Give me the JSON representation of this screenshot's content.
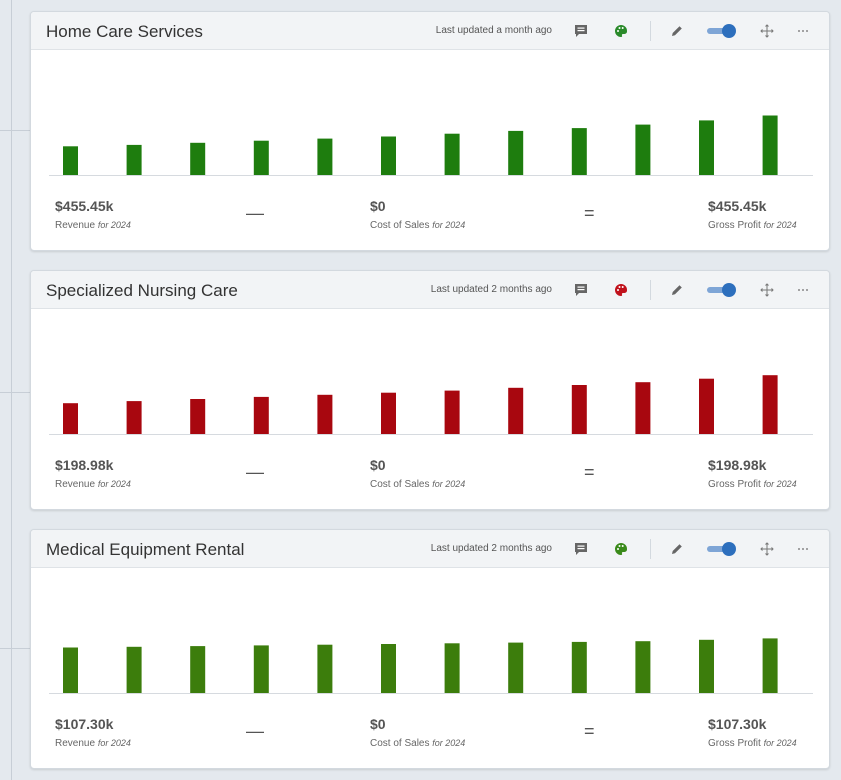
{
  "cards": [
    {
      "title": "Home Care Services",
      "updated": "Last updated a month ago",
      "palette_color": "#2a8a2a",
      "bar_color": "#1e7d0e",
      "bars": [
        0.41,
        0.43,
        0.46,
        0.49,
        0.52,
        0.55,
        0.59,
        0.63,
        0.67,
        0.72,
        0.78,
        0.85
      ],
      "revenue": {
        "value": "$455.45k",
        "label": "Revenue",
        "period": "for 2024"
      },
      "minus": "—",
      "cost": {
        "value": "$0",
        "label": "Cost of Sales",
        "period": "for 2024"
      },
      "equals": "=",
      "profit": {
        "value": "$455.45k",
        "label": "Gross Profit",
        "period": "for 2024"
      }
    },
    {
      "title": "Specialized Nursing Care",
      "updated": "Last updated 2 months ago",
      "palette_color": "#c0111b",
      "bar_color": "#a8070f",
      "bars": [
        0.44,
        0.47,
        0.5,
        0.53,
        0.56,
        0.59,
        0.62,
        0.66,
        0.7,
        0.74,
        0.79,
        0.84
      ],
      "revenue": {
        "value": "$198.98k",
        "label": "Revenue",
        "period": "for 2024"
      },
      "minus": "—",
      "cost": {
        "value": "$0",
        "label": "Cost of Sales",
        "period": "for 2024"
      },
      "equals": "=",
      "profit": {
        "value": "$198.98k",
        "label": "Gross Profit",
        "period": "for 2024"
      }
    },
    {
      "title": "Medical Equipment Rental",
      "updated": "Last updated 2 months ago",
      "palette_color": "#3a8a1a",
      "bar_color": "#3c7d0c",
      "bars": [
        0.65,
        0.66,
        0.67,
        0.68,
        0.69,
        0.7,
        0.71,
        0.72,
        0.73,
        0.74,
        0.76,
        0.78
      ],
      "revenue": {
        "value": "$107.30k",
        "label": "Revenue",
        "period": "for 2024"
      },
      "minus": "—",
      "cost": {
        "value": "$0",
        "label": "Cost of Sales",
        "period": "for 2024"
      },
      "equals": "=",
      "profit": {
        "value": "$107.30k",
        "label": "Gross Profit",
        "period": "for 2024"
      }
    }
  ]
}
